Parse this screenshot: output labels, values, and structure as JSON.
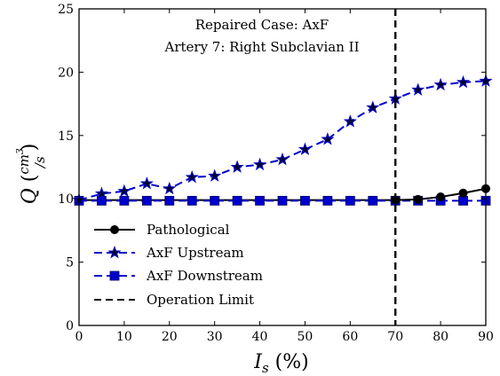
{
  "chart_data": {
    "type": "line",
    "title": "Repaired Case: AxF",
    "subtitle": "Artery 7: Right Subclavian II",
    "xlabel": "I_s (%)",
    "ylabel": "Q (cm^3/s)",
    "xlim": [
      0,
      90
    ],
    "ylim": [
      0,
      25
    ],
    "xticks": [
      0,
      10,
      20,
      30,
      40,
      50,
      60,
      70,
      80,
      90
    ],
    "yticks": [
      0,
      5,
      10,
      15,
      20,
      25
    ],
    "grid": false,
    "legend_position": "lower-left",
    "x": [
      0,
      5,
      10,
      15,
      20,
      25,
      30,
      35,
      40,
      45,
      50,
      55,
      60,
      65,
      70,
      75,
      80,
      85,
      90
    ],
    "series": [
      {
        "name": "Pathological",
        "style": "solid",
        "marker": "circle",
        "color": "#000000",
        "x": [
          70,
          75,
          80,
          85,
          90
        ],
        "values": [
          9.9,
          9.95,
          10.15,
          10.45,
          10.8
        ]
      },
      {
        "name": "AxF Upstream",
        "style": "dashed",
        "marker": "star",
        "color": "#0000cc",
        "x": [
          0,
          5,
          10,
          15,
          20,
          25,
          30,
          35,
          40,
          45,
          50,
          55,
          60,
          65,
          70,
          75,
          80,
          85,
          90
        ],
        "values": [
          9.9,
          10.4,
          10.6,
          11.2,
          10.8,
          11.7,
          11.8,
          12.5,
          12.7,
          13.1,
          13.9,
          14.7,
          16.1,
          17.2,
          17.9,
          18.6,
          19.0,
          19.2,
          19.3
        ]
      },
      {
        "name": "AxF Downstream",
        "style": "dashed",
        "marker": "square",
        "color": "#0000cc",
        "x": [
          0,
          5,
          10,
          15,
          20,
          25,
          30,
          35,
          40,
          45,
          50,
          55,
          60,
          65,
          70,
          75,
          80,
          85,
          90
        ],
        "values": [
          9.85,
          9.85,
          9.85,
          9.85,
          9.85,
          9.85,
          9.85,
          9.85,
          9.85,
          9.85,
          9.85,
          9.85,
          9.85,
          9.85,
          9.85,
          9.85,
          9.85,
          9.85,
          9.85
        ]
      },
      {
        "name": "Operation Limit",
        "style": "dashed",
        "marker": "none",
        "color": "#000000",
        "vertical_at_x": 70
      }
    ],
    "pathological_baseline": {
      "style": "solid",
      "color": "#000000",
      "x": [
        0,
        70
      ],
      "values": [
        9.9,
        9.9
      ]
    }
  }
}
